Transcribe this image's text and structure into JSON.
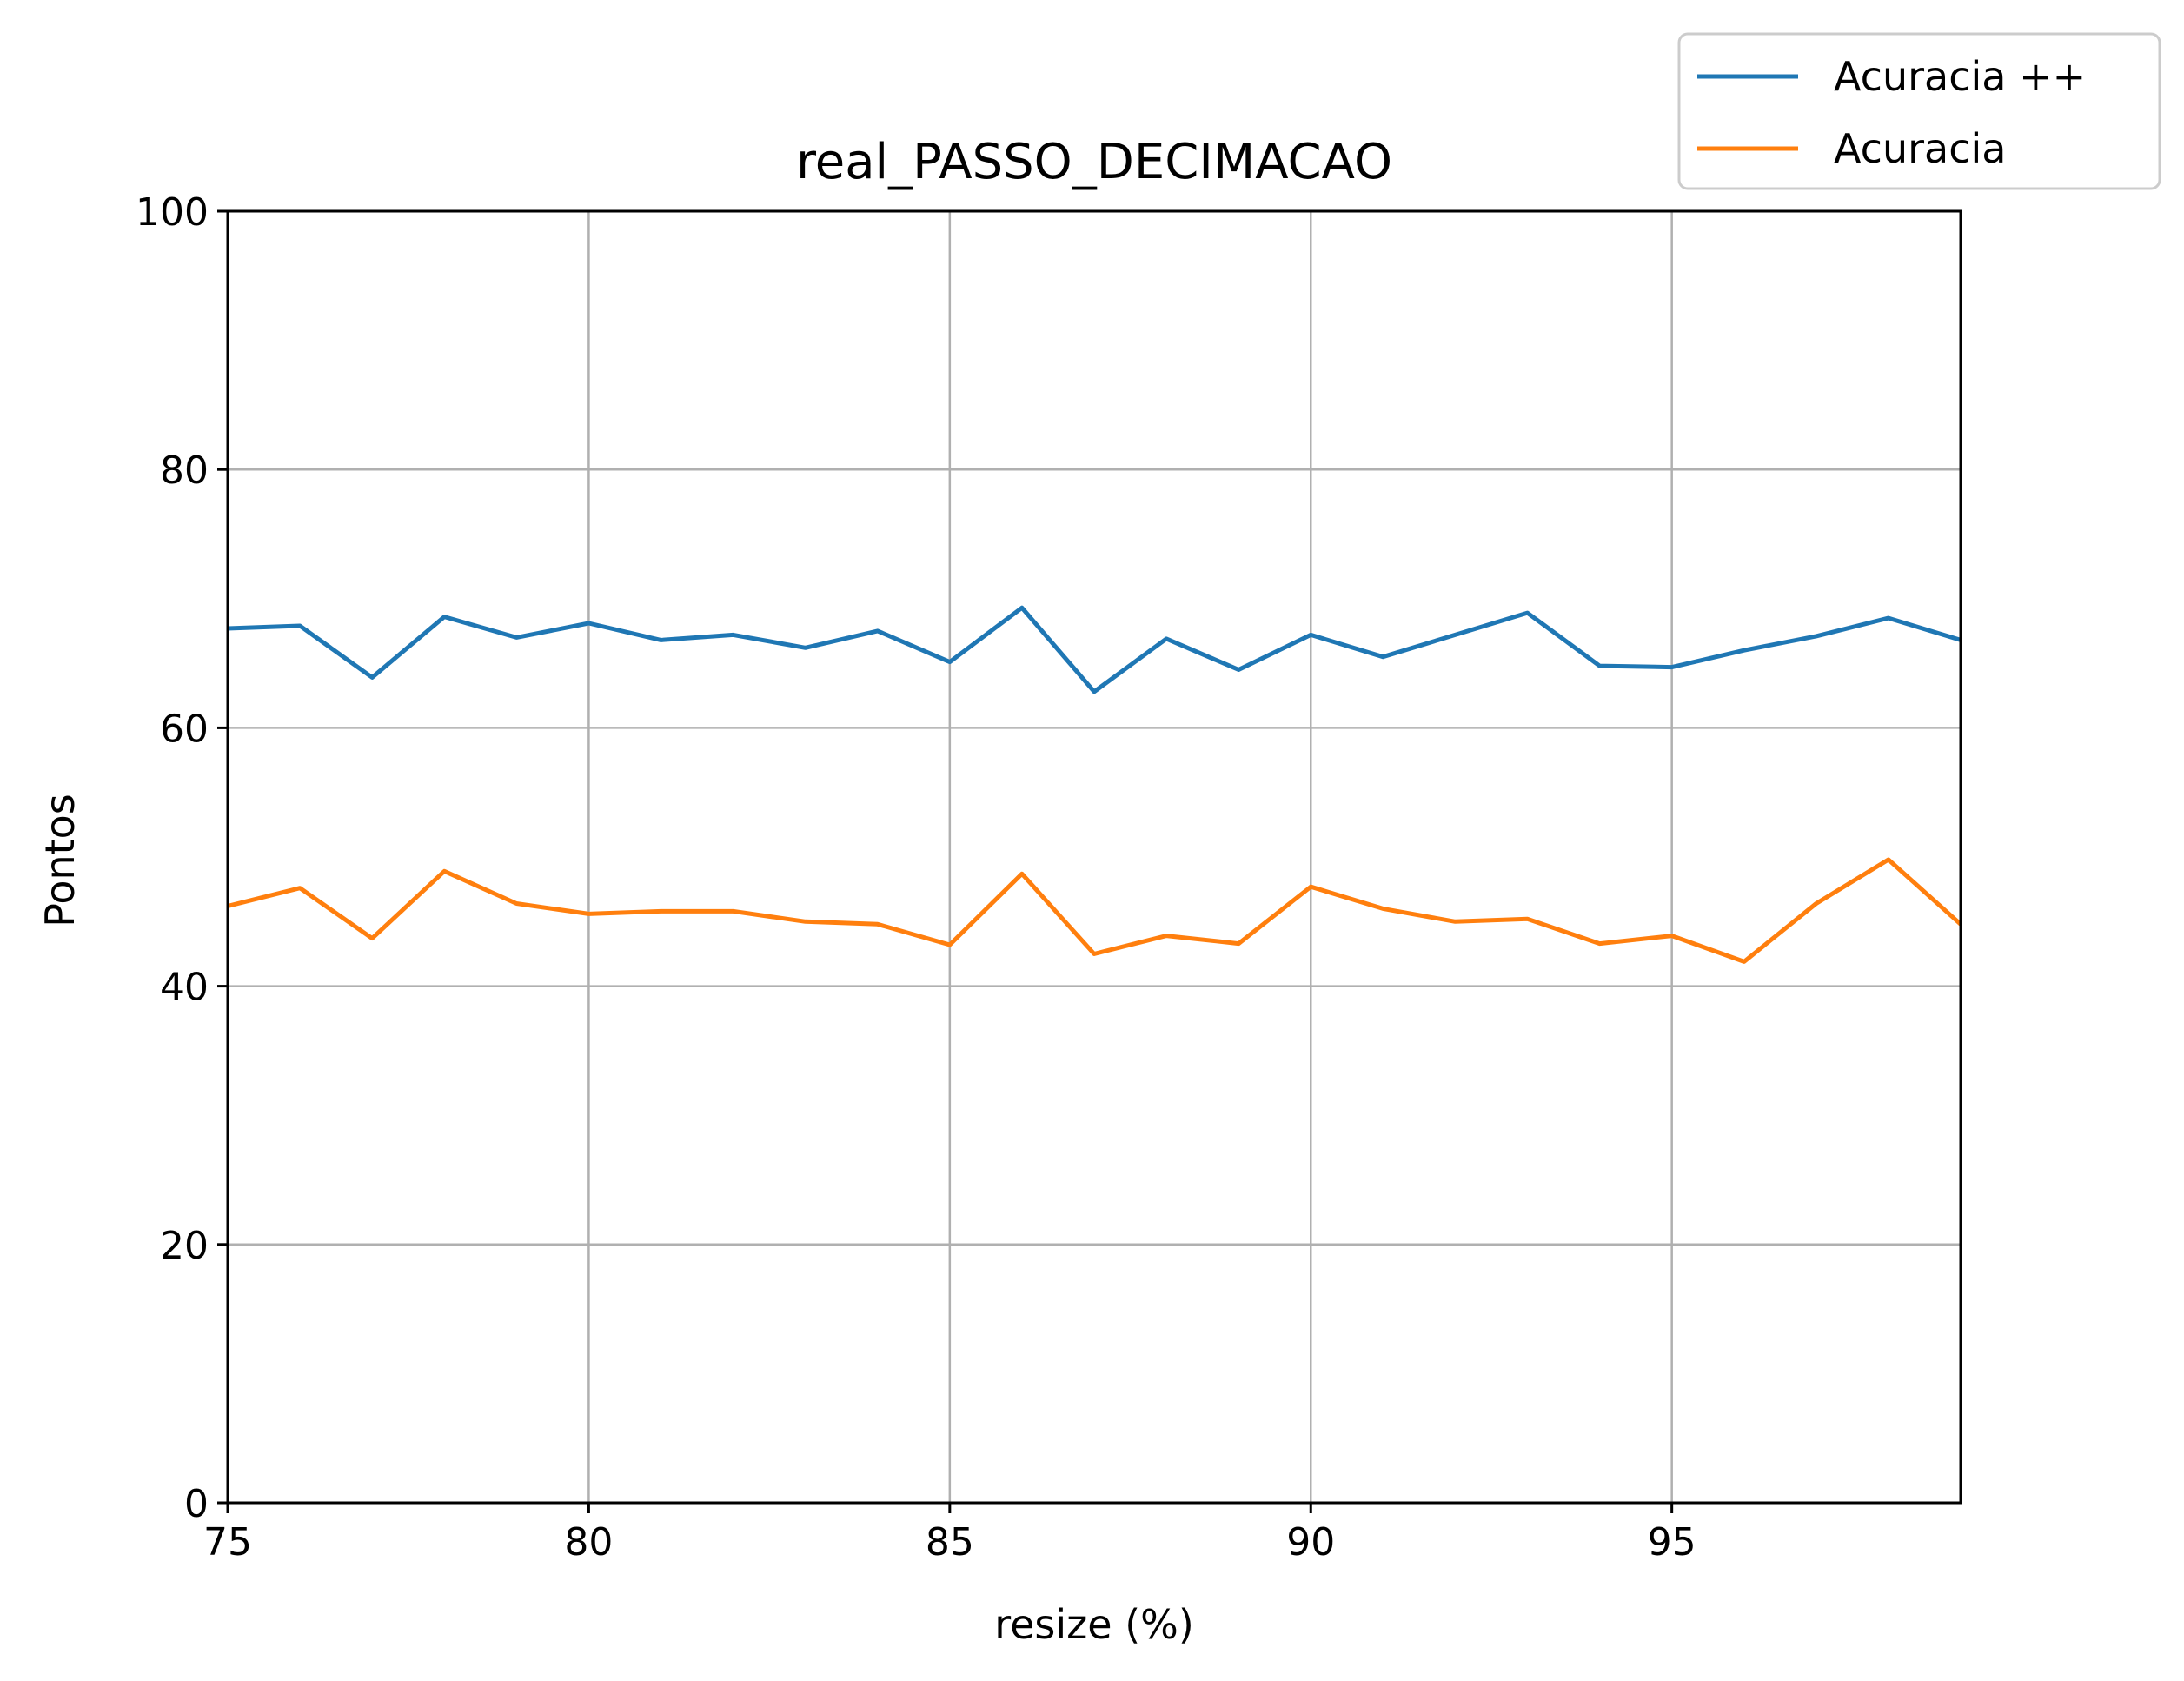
{
  "chart_data": {
    "type": "line",
    "title": "real_PASSO_DECIMACAO",
    "xlabel": "resize (%)",
    "ylabel": "Pontos",
    "xlim": [
      75,
      99
    ],
    "ylim": [
      0,
      100
    ],
    "x_ticks": [
      75,
      80,
      85,
      90,
      95
    ],
    "y_ticks": [
      0,
      20,
      40,
      60,
      80,
      100
    ],
    "grid": true,
    "legend_position": "top-right",
    "x": [
      75,
      76,
      77,
      78,
      79,
      80,
      81,
      82,
      83,
      84,
      85,
      86,
      87,
      88,
      89,
      90,
      91,
      92,
      93,
      94,
      95,
      96,
      97,
      98,
      99
    ],
    "series": [
      {
        "name": "Acuracia ++",
        "color": "#1f77b4",
        "values": [
          67.7,
          67.9,
          63.9,
          68.6,
          67.0,
          68.1,
          66.8,
          67.2,
          66.2,
          67.5,
          65.1,
          69.3,
          62.8,
          66.9,
          64.5,
          67.2,
          65.5,
          67.2,
          68.9,
          64.8,
          64.7,
          66.0,
          67.1,
          68.5,
          66.8
        ]
      },
      {
        "name": "Acuracia",
        "color": "#ff7f0e",
        "values": [
          46.2,
          47.6,
          43.7,
          48.9,
          46.4,
          45.6,
          45.8,
          45.8,
          45.0,
          44.8,
          43.2,
          48.7,
          42.5,
          43.9,
          43.3,
          47.7,
          46.0,
          45.0,
          45.2,
          43.3,
          43.9,
          41.9,
          46.4,
          49.8,
          44.8
        ]
      }
    ]
  }
}
